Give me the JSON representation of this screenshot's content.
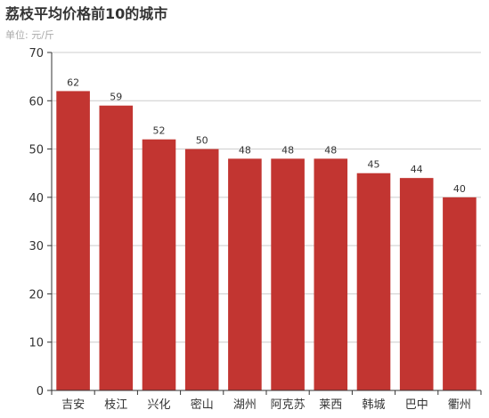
{
  "chart_data": {
    "type": "bar",
    "title": "荔枝平均价格前10的城市",
    "subtitle": "单位: 元/斤",
    "xlabel": "",
    "ylabel": "",
    "categories": [
      "吉安",
      "枝江",
      "兴化",
      "密山",
      "湖州",
      "阿克苏",
      "莱西",
      "韩城",
      "巴中",
      "衢州"
    ],
    "values": [
      62,
      59,
      52,
      50,
      48,
      48,
      48,
      45,
      44,
      40
    ],
    "ylim": [
      0,
      70
    ],
    "yticks": [
      0,
      10,
      20,
      30,
      40,
      50,
      60,
      70
    ],
    "grid": true,
    "legend": "none",
    "bar_color": "#c23531",
    "grid_color": "#cccccc",
    "axis_color": "#333333"
  }
}
